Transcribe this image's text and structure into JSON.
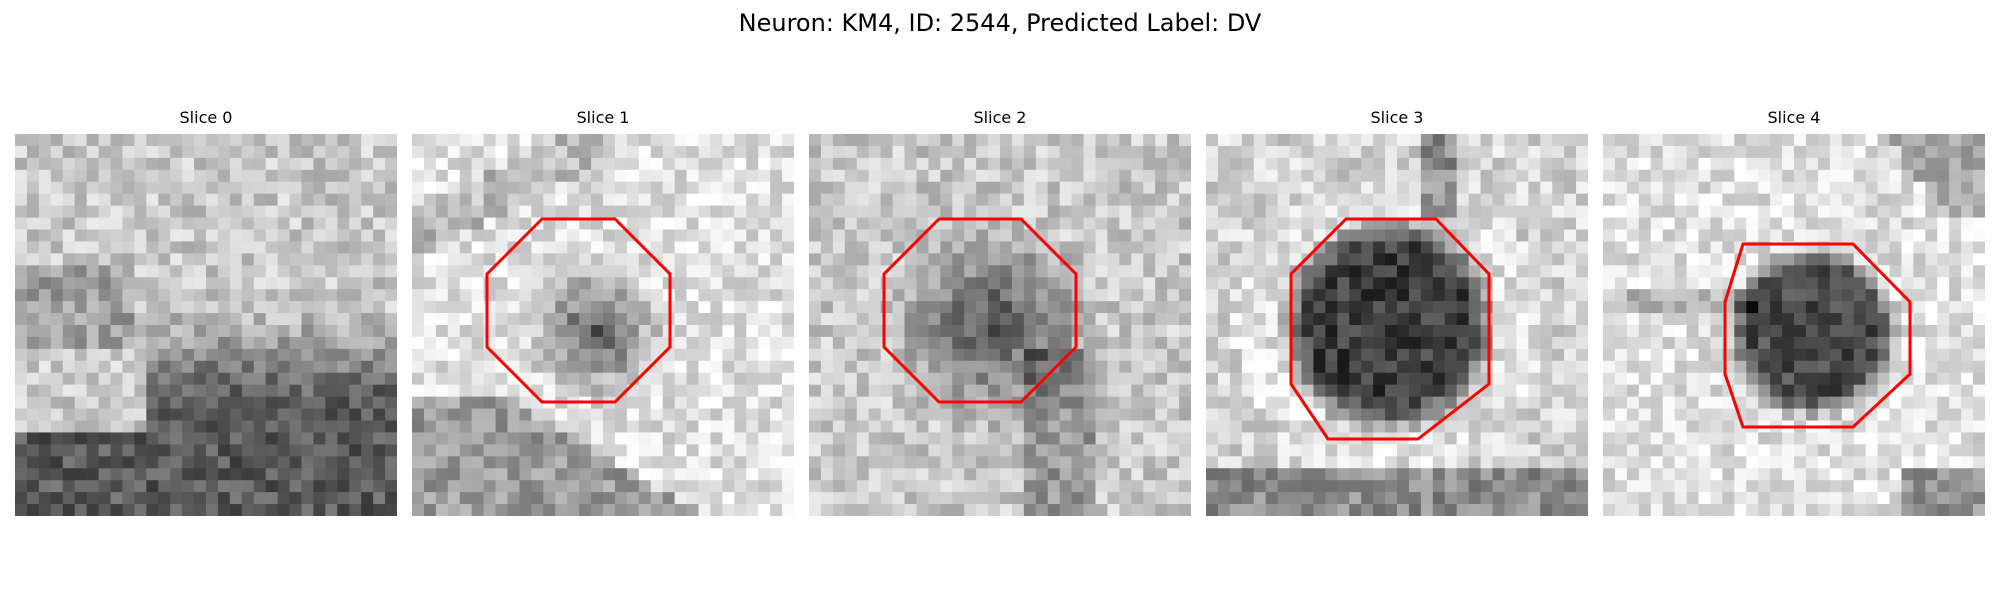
{
  "figure": {
    "title": "Neuron: KM4, ID: 2544, Predicted Label: DV"
  },
  "panels": [
    {
      "title": "Slice 0",
      "has_roi": false,
      "roi_color": "#ff0000",
      "description_seed": 11,
      "base": "dark-bottom-right"
    },
    {
      "title": "Slice 1",
      "has_roi": true,
      "roi_color": "#ff0000",
      "description_seed": 23,
      "base": "small-blob"
    },
    {
      "title": "Slice 2",
      "has_roi": true,
      "roi_color": "#ff0000",
      "description_seed": 37,
      "base": "noisy-blob"
    },
    {
      "title": "Slice 3",
      "has_roi": true,
      "roi_color": "#ff0000",
      "description_seed": 41,
      "base": "big-blob"
    },
    {
      "title": "Slice 4",
      "has_roi": true,
      "roi_color": "#ff0000",
      "description_seed": 53,
      "base": "medium-blob"
    }
  ]
}
